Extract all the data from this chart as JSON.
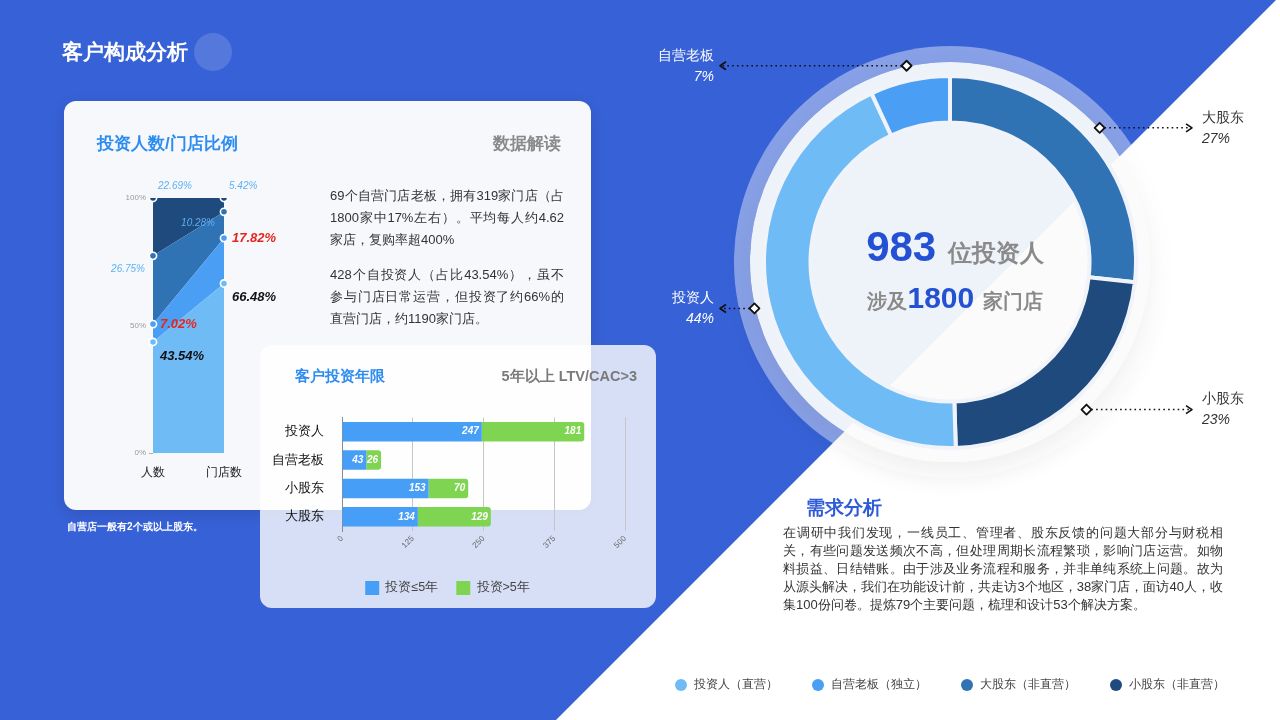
{
  "chart_data": [
    {
      "type": "other",
      "title": "客户构成分析"
    },
    {
      "type": "area",
      "title": "投资人数/门店比例",
      "categories": [
        "人数",
        "门店数"
      ],
      "stacked": true,
      "series": [
        {
          "name": "投资人（直营）",
          "color": "#6fbbf6",
          "values": [
            43.54,
            66.48
          ],
          "value_labels": [
            "43.54%",
            "66.48%"
          ]
        },
        {
          "name": "自营老板（独立）",
          "color": "#4a9ff4",
          "values": [
            7.02,
            17.82
          ],
          "value_labels": [
            "7.02%",
            "17.82%"
          ]
        },
        {
          "name": "大股东（非直营）",
          "color": "#3073b5",
          "values": [
            26.75,
            10.28
          ],
          "value_labels": [
            "26.75%",
            "10.28%"
          ]
        },
        {
          "name": "小股东（非直营）",
          "color": "#1f4a7d",
          "values": [
            22.69,
            5.42
          ],
          "value_labels": [
            "22.69%",
            "5.42%"
          ]
        }
      ],
      "ylim": [
        0,
        100
      ],
      "yticks": [
        {
          "value": 0,
          "label": "0%"
        },
        {
          "value": 50,
          "label": "50%"
        },
        {
          "value": 100,
          "label": "100%"
        }
      ],
      "grid": false,
      "legend": "bottom right",
      "marker": "circle",
      "annotations": [
        "自营店一般有2个或以上股东。"
      ]
    },
    {
      "type": "other",
      "title": "数据解读",
      "annotations": [
        "69个自营门店老板，拥有319家门店（占1800家中17%左右）。平均每人约4.62家店，复购率超400%",
        "428个自投资人（占比43.54%），虽不参与门店日常运营，但投资了约66%的直营门店，约1190家门店。"
      ]
    },
    {
      "type": "bar",
      "title": "客户投资年限",
      "subtitle": "5年以上 LTV/CAC>3",
      "orientation": "horizontal",
      "stacked": true,
      "categories": [
        "投资人",
        "自营老板",
        "小股东",
        "大股东"
      ],
      "series": [
        {
          "name": "投资≤5年",
          "color": "#479ef6",
          "values": [
            247,
            43,
            153,
            134
          ]
        },
        {
          "name": "投资>5年",
          "color": "#7fd552",
          "values": [
            181,
            26,
            70,
            129
          ]
        }
      ],
      "xlim": [
        0,
        500
      ],
      "xticks": [
        0,
        125,
        250,
        375,
        500
      ],
      "grid": "x",
      "legend": "bottom",
      "data_labels": true
    },
    {
      "type": "donut",
      "categories": [
        "大股东",
        "小股东",
        "投资人",
        "自营老板"
      ],
      "values": [
        27,
        23,
        44,
        7
      ],
      "colors": [
        "#3073b5",
        "#1f4a7d",
        "#6fbbf6",
        "#4a9ff4"
      ],
      "value_labels": [
        "27%",
        "23%",
        "44%",
        "7%"
      ],
      "annotations": [
        "983 位投资人",
        "涉及1800 家门店"
      ]
    },
    {
      "type": "other",
      "title": "需求分析",
      "annotations": [
        "在调研中我们发现，一线员工、管理者、股东反馈的问题大部分与财税相关，有些问题发送频次不高，但处理周期长流程繁琐，影响门店运营。如物料损益、日结错账。由于涉及业务流程和服务，并非单纯系统上问题。故为从源头解决，我们在功能设计前，共走访3个地区，38家门店，面访40人，收集100份问卷。提炼79个主要问题，梳理和设计53个解决方案。"
      ]
    }
  ]
}
